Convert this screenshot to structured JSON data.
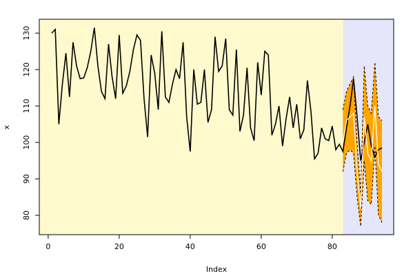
{
  "chart_data": {
    "type": "line",
    "xlabel": "Index",
    "ylabel": "x",
    "x": [
      1,
      2,
      3,
      4,
      5,
      6,
      7,
      8,
      9,
      10,
      11,
      12,
      13,
      14,
      15,
      16,
      17,
      18,
      19,
      20,
      21,
      22,
      23,
      24,
      25,
      26,
      27,
      28,
      29,
      30,
      31,
      32,
      33,
      34,
      35,
      36,
      37,
      38,
      39,
      40,
      41,
      42,
      43,
      44,
      45,
      46,
      47,
      48,
      49,
      50,
      51,
      52,
      53,
      54,
      55,
      56,
      57,
      58,
      59,
      60,
      61,
      62,
      63,
      64,
      65,
      66,
      67,
      68,
      69,
      70,
      71,
      72,
      73,
      74,
      75,
      76,
      77,
      78,
      79,
      80,
      81,
      82,
      83,
      84,
      85,
      86,
      87,
      88,
      89,
      90,
      91,
      92,
      93,
      94
    ],
    "series": [
      {
        "color": "#000000",
        "values": [
          130,
          131,
          105,
          116,
          124.5,
          112.5,
          127.5,
          121,
          117.5,
          117.7,
          120.5,
          125,
          131.5,
          121,
          114,
          112,
          127,
          118,
          112,
          129.5,
          113.5,
          115.5,
          119.5,
          125.5,
          129.5,
          128,
          112,
          101.5,
          124,
          119,
          109,
          130.5,
          112.5,
          111,
          116,
          120,
          117.5,
          127.5,
          107,
          97.5,
          120,
          110.5,
          111,
          120,
          105.5,
          109,
          129,
          119.5,
          121,
          128.5,
          109,
          107.5,
          125.5,
          103,
          107.5,
          120.5,
          104,
          100.5,
          122,
          113,
          125,
          124,
          102,
          105,
          110,
          99,
          106.5,
          112.5,
          104,
          110.5,
          101,
          103.5,
          117,
          108.5,
          95.5,
          97,
          104,
          101,
          100.5,
          104.5,
          98,
          99.5,
          97.5,
          104,
          110,
          117.5,
          107,
          95,
          100,
          105,
          99,
          96,
          98,
          98.5
        ]
      }
    ],
    "forecast": {
      "x": [
        83,
        84,
        85,
        86,
        87,
        88,
        89,
        90,
        91,
        92,
        93,
        94
      ],
      "mean": [
        100,
        106,
        107,
        108,
        92,
        82,
        107,
        97,
        95,
        110,
        94,
        92
      ],
      "upper": [
        109,
        114,
        116,
        118,
        100,
        86,
        121,
        110,
        108,
        122,
        107,
        106
      ],
      "lower": [
        92,
        97,
        98,
        97,
        85,
        77,
        95,
        84,
        83,
        99,
        80,
        78
      ],
      "band_color": "#ffa500",
      "mean_color": "#ffffff",
      "bound_color": "#000000"
    },
    "history_background": "#fffacd",
    "forecast_background": "#e6e6fa",
    "xlim": [
      -2.5,
      97.3
    ],
    "ylim": [
      74.7,
      133.8
    ],
    "xticks": [
      0,
      20,
      40,
      60,
      80
    ],
    "yticks": [
      80,
      90,
      100,
      110,
      120,
      130
    ]
  }
}
